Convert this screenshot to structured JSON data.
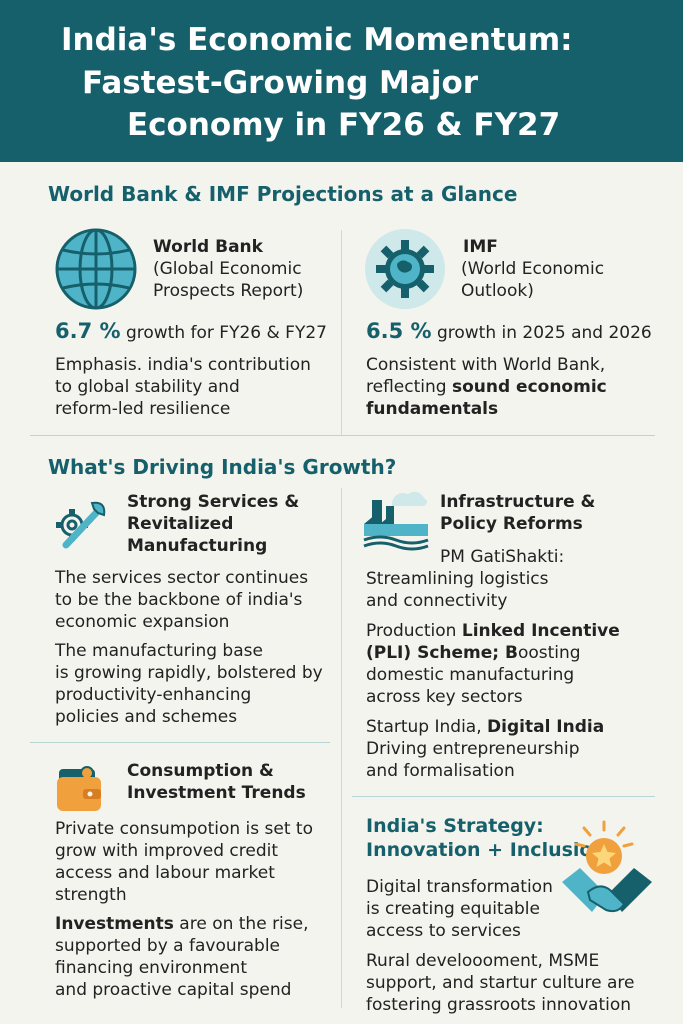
{
  "header": {
    "line1": "India's Economic Momentum:",
    "line2": "Fastest-Growing Major",
    "line3": "Economy in FY26 & FY27"
  },
  "projections": {
    "title": "World Bank & IMF Projections at a Glance",
    "world_bank": {
      "name": "World Bank",
      "source_line1": "(Global Economic",
      "source_line2": "Prospects Report)",
      "rate": "6.7 %",
      "rate_text": "growth for FY26 & FY27",
      "note_line1": "Emphasis. india's contribution",
      "note_line2": "to global stability and",
      "note_line3": "reform-led resilience",
      "icon": "globe-icon"
    },
    "imf": {
      "name": "IMF",
      "source_line1": "(World Economic",
      "source_line2": "Outlook)",
      "rate": "6.5 %",
      "rate_text": "growth in 2025  and 2026",
      "note_line1": "Consistent with World Bank,",
      "note_line2_plain": "reflecting ",
      "note_line2_bold": "sound economic",
      "note_line3_bold": "fundamentals",
      "icon": "gear-globe-icon"
    }
  },
  "drivers": {
    "title": "What's Driving India's Growth?",
    "services": {
      "heading1": "Strong Services &",
      "heading2": "Revitalized",
      "heading3": "Manufacturing",
      "p1_line1": "The services sector continues",
      "p1_line2": "to be the backbone of india's",
      "p1_line3": "economic expansion",
      "p2_line1": "The manufacturing base",
      "p2_line2": "is growing rapidly, bolstered by",
      "p2_line3": "productivity-enhancing",
      "p2_line4": "policies and schemes",
      "icon": "gear-wrench-icon"
    },
    "infrastructure": {
      "heading1": "Infrastructure &",
      "heading2": "Policy Reforms",
      "p1_line1": "PM GatiShakti:",
      "p1_line2": "Streamlining logistics",
      "p1_line3": "and connectivity",
      "p2_line1_plain": "Production ",
      "p2_line1_bold": "Linked Incentive",
      "p2_line2_bold": "(PLI) Scheme; B",
      "p2_line2_plain": "oosting",
      "p2_line3": "domestic manufacturing",
      "p2_line4": "across key sectors",
      "p3_line1_plain": "Startup India, ",
      "p3_line1_bold": "Digital India",
      "p3_line2": "Driving entrepreneurship",
      "p3_line3": "and formalisation",
      "icon": "factory-icon"
    },
    "consumption": {
      "heading1": "Consumption &",
      "heading2": "Investment Trends",
      "p1_line1": "Private consumpotion is set to",
      "p1_line2": "grow with improved credit",
      "p1_line3": "access and labour market",
      "p1_line4": "strength",
      "p2_line1_bold": "Investments",
      "p2_line1_plain": " are on the rise,",
      "p2_line2": "supported by a favourable",
      "p2_line3": "financing environment",
      "p2_line4": "and proactive capital spend",
      "icon": "wallet-icon"
    },
    "strategy": {
      "heading1": "India's Strategy:",
      "heading2": "Innovation + Inclusion",
      "p1_line1": "Digital transformation",
      "p1_line2": "is creating equitable",
      "p1_line3": "access to services",
      "p2_line1": "Rural develoooment,  MSME",
      "p2_line2": "support, and startur culture are",
      "p2_line3": "fostering grassroots innovation",
      "icon": "handshake-star-icon"
    }
  },
  "colors": {
    "teal": "#16606b",
    "light_teal": "#4fb4c8",
    "orange": "#f0a03c",
    "background": "#f4f4ee"
  }
}
